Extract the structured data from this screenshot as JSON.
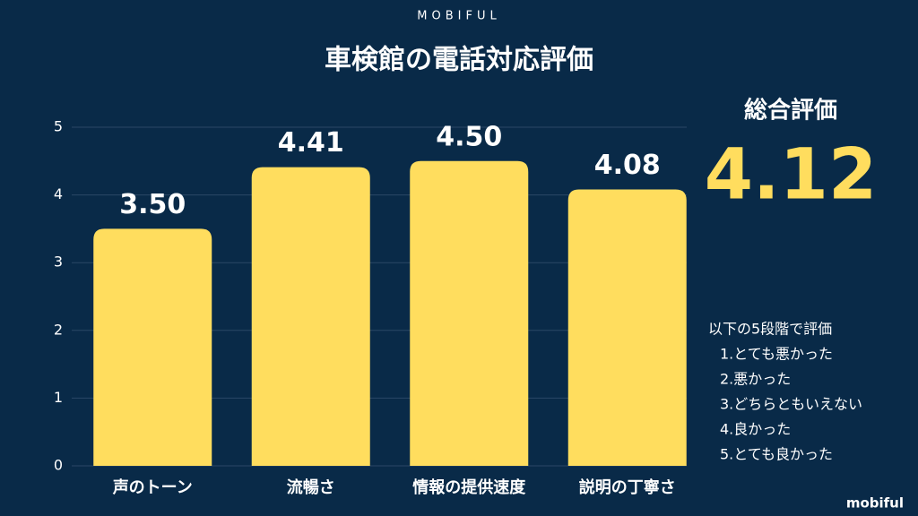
{
  "brand": "MOBIFUL",
  "chart_data": {
    "type": "bar",
    "title": "車検館の電話対応評価",
    "categories": [
      "声のトーン",
      "流暢さ",
      "情報の提供速度",
      "説明の丁寧さ"
    ],
    "values": [
      3.5,
      4.41,
      4.5,
      4.08
    ],
    "value_labels": [
      "3.50",
      "4.41",
      "4.50",
      "4.08"
    ],
    "color": "#ffdd5e",
    "ylim": [
      0,
      5
    ],
    "yticks": [
      0,
      1,
      2,
      3,
      4,
      5
    ],
    "grid": true
  },
  "overall": {
    "label": "総合評価",
    "score": 4.12
  },
  "scale": {
    "title": "以下の5段階で評価",
    "items": [
      "1.とても悪かった",
      "2.悪かった",
      "3.どちらともいえない",
      "4.良かった",
      "5.とても良かった"
    ]
  },
  "footer": "mobiful"
}
